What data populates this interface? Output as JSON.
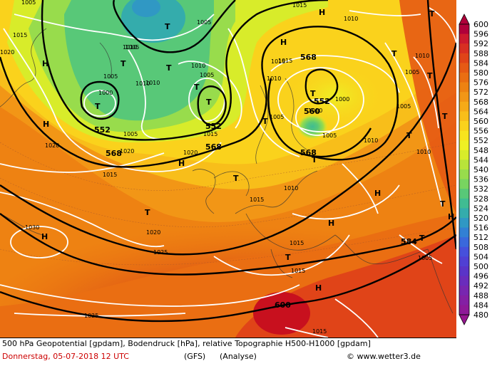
{
  "caption": {
    "line1": "500 hPa Geopotential [gpdam], Bodendruck [hPa], relative Topographie H500-H1000 [gpdam]",
    "date": "Donnerstag, 05-07-2018  12 UTC",
    "model": "(GFS)",
    "analyse": "(Analyse)",
    "copyright": "© www.wetter3.de"
  },
  "legend": {
    "levels": [
      "600",
      "596",
      "592",
      "588",
      "584",
      "580",
      "576",
      "572",
      "568",
      "564",
      "560",
      "556",
      "552",
      "548",
      "544",
      "540",
      "536",
      "532",
      "528",
      "524",
      "520",
      "516",
      "512",
      "508",
      "504",
      "500",
      "496",
      "492",
      "488",
      "484",
      "480"
    ],
    "colors": [
      "#b0003a",
      "#cc1a2e",
      "#d82f22",
      "#e04418",
      "#e65a14",
      "#ea6e12",
      "#ee8212",
      "#f29616",
      "#f6aa18",
      "#f8be1a",
      "#fad21c",
      "#f8e41e",
      "#eef024",
      "#d8ec2a",
      "#b8e43a",
      "#98dc4c",
      "#78d460",
      "#58c878",
      "#40bc92",
      "#34acac",
      "#3098c4",
      "#3280d4",
      "#3a68dc",
      "#4650dc",
      "#5040d4",
      "#5a34c8",
      "#6a2cbc",
      "#7826b0",
      "#8420a4",
      "#8e1a98",
      "#961690"
    ]
  },
  "pressure_centers": [
    {
      "type": "T",
      "label": "T"
    },
    {
      "type": "T",
      "label": "T"
    },
    {
      "type": "T",
      "label": "T"
    },
    {
      "type": "T",
      "label": "T"
    },
    {
      "type": "T",
      "label": "T"
    },
    {
      "type": "T",
      "label": "T"
    },
    {
      "type": "T",
      "label": "T"
    },
    {
      "type": "T",
      "label": "T"
    },
    {
      "type": "T",
      "label": "T"
    },
    {
      "type": "T",
      "label": "T"
    },
    {
      "type": "T",
      "label": "T"
    },
    {
      "type": "T",
      "label": "T"
    },
    {
      "type": "T",
      "label": "T"
    },
    {
      "type": "T",
      "label": "T"
    },
    {
      "type": "T",
      "label": "T"
    },
    {
      "type": "T",
      "label": "T"
    },
    {
      "type": "T",
      "label": "T"
    },
    {
      "type": "T",
      "label": "T"
    },
    {
      "type": "T",
      "label": "T"
    },
    {
      "type": "H",
      "label": "H"
    },
    {
      "type": "H",
      "label": "H"
    },
    {
      "type": "H",
      "label": "H"
    },
    {
      "type": "H",
      "label": "H"
    },
    {
      "type": "H",
      "label": "H"
    },
    {
      "type": "H",
      "label": "H"
    },
    {
      "type": "H",
      "label": "H"
    },
    {
      "type": "H",
      "label": "H"
    },
    {
      "type": "H",
      "label": "H"
    },
    {
      "type": "H",
      "label": "H"
    }
  ],
  "geopotential_labels": [
    "552",
    "552",
    "552",
    "568",
    "568",
    "568",
    "568",
    "560",
    "584",
    "600"
  ],
  "isobar_labels": [
    "1015",
    "1005",
    "1010",
    "1005",
    "1005",
    "1010",
    "1000",
    "1005",
    "1015",
    "1020",
    "1010",
    "1005",
    "1020",
    "1015",
    "1010",
    "1005",
    "1020",
    "1015",
    "1010",
    "1015",
    "1010",
    "1005",
    "1010",
    "1015",
    "1030",
    "1020",
    "1025",
    "1015",
    "1015",
    "1025",
    "1015",
    "1005",
    "1020",
    "1015",
    "1000",
    "1010",
    "1005",
    "1010",
    "1005",
    "1005",
    "1010",
    "1010"
  ]
}
